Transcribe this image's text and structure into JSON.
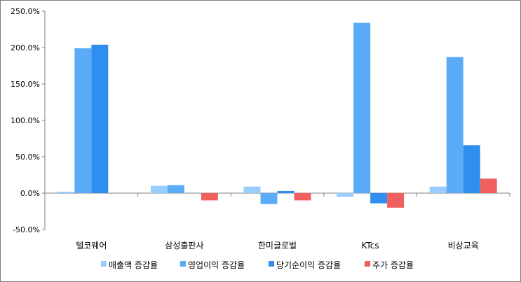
{
  "chart_data": {
    "type": "bar",
    "categories": [
      "텔코웨어",
      "삼성출판사",
      "한미글로벌",
      "KTcs",
      "비상교육"
    ],
    "series": [
      {
        "name": "매출액 증감율",
        "color": "#99ccff",
        "values": [
          2,
          10,
          9,
          -5,
          9
        ]
      },
      {
        "name": "영업이익 증감율",
        "color": "#5aacf6",
        "values": [
          199,
          11,
          -15,
          234,
          187
        ]
      },
      {
        "name": "당기순이익 증감율",
        "color": "#2f8ff0",
        "values": [
          204,
          0,
          3,
          -14,
          66
        ]
      },
      {
        "name": "주가 증감율",
        "color": "#f06060",
        "values": [
          0,
          -10,
          -10,
          -20,
          20
        ]
      }
    ],
    "yticks": [
      "250.0%",
      "200.0%",
      "150.0%",
      "100.0%",
      "50.0%",
      "0.0%",
      "-50.0%"
    ],
    "ytick_values": [
      250,
      200,
      150,
      100,
      50,
      0,
      -50
    ],
    "ylim": [
      -50,
      250
    ],
    "legend_position": "bottom",
    "grid": false
  }
}
